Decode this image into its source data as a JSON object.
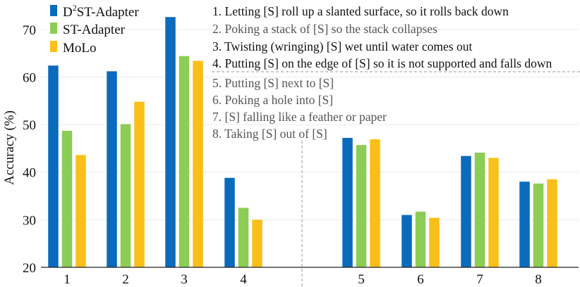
{
  "chart_data": {
    "type": "bar",
    "ylabel": "Accuracy (%)",
    "ylim": [
      20,
      75
    ],
    "yticks": [
      20,
      30,
      40,
      50,
      60,
      70
    ],
    "categories": [
      "1",
      "2",
      "3",
      "4",
      "5",
      "6",
      "7",
      "8"
    ],
    "series": [
      {
        "name": "D²ST-Adapter",
        "color": "#0a6bbd",
        "values": [
          62.4,
          61.2,
          72.6,
          38.8,
          47.2,
          31.0,
          43.4,
          38.0
        ]
      },
      {
        "name": "ST-Adapter",
        "color": "#8ccd55",
        "values": [
          48.7,
          50.1,
          64.4,
          32.5,
          45.7,
          31.7,
          44.1,
          37.6
        ]
      },
      {
        "name": "MoLo",
        "color": "#fbbf1a",
        "values": [
          43.6,
          54.8,
          63.4,
          30.0,
          46.9,
          30.4,
          43.0,
          38.5
        ]
      }
    ],
    "legend": {
      "position": "top-left",
      "entries": [
        {
          "prefix": "D",
          "sup": "2",
          "suffix": "ST-Adapter"
        },
        {
          "prefix": "ST-Adapter",
          "sup": "",
          "suffix": ""
        },
        {
          "prefix": "MoLo",
          "sup": "",
          "suffix": ""
        }
      ]
    },
    "annotations": {
      "group_a": [
        {
          "text": "1. Letting [S] roll up a slanted surface, so it rolls back down",
          "color": "#111111"
        },
        {
          "text": "2. Poking a stack of [S] so the stack collapses",
          "color": "#555555"
        },
        {
          "text": "3. Twisting (wringing) [S] wet until water comes out",
          "color": "#111111"
        },
        {
          "text": "4. Putting [S] on the edge of [S] so it is not supported and falls down",
          "color": "#111111"
        }
      ],
      "group_b": [
        {
          "text": "5. Putting [S] next to [S]",
          "color": "#555555"
        },
        {
          "text": "6. Poking a hole into [S]",
          "color": "#555555"
        },
        {
          "text": "7. [S] falling like a feather or paper",
          "color": "#555555"
        },
        {
          "text": "8. Taking [S] out of [S]",
          "color": "#555555"
        }
      ]
    },
    "grid": true
  }
}
